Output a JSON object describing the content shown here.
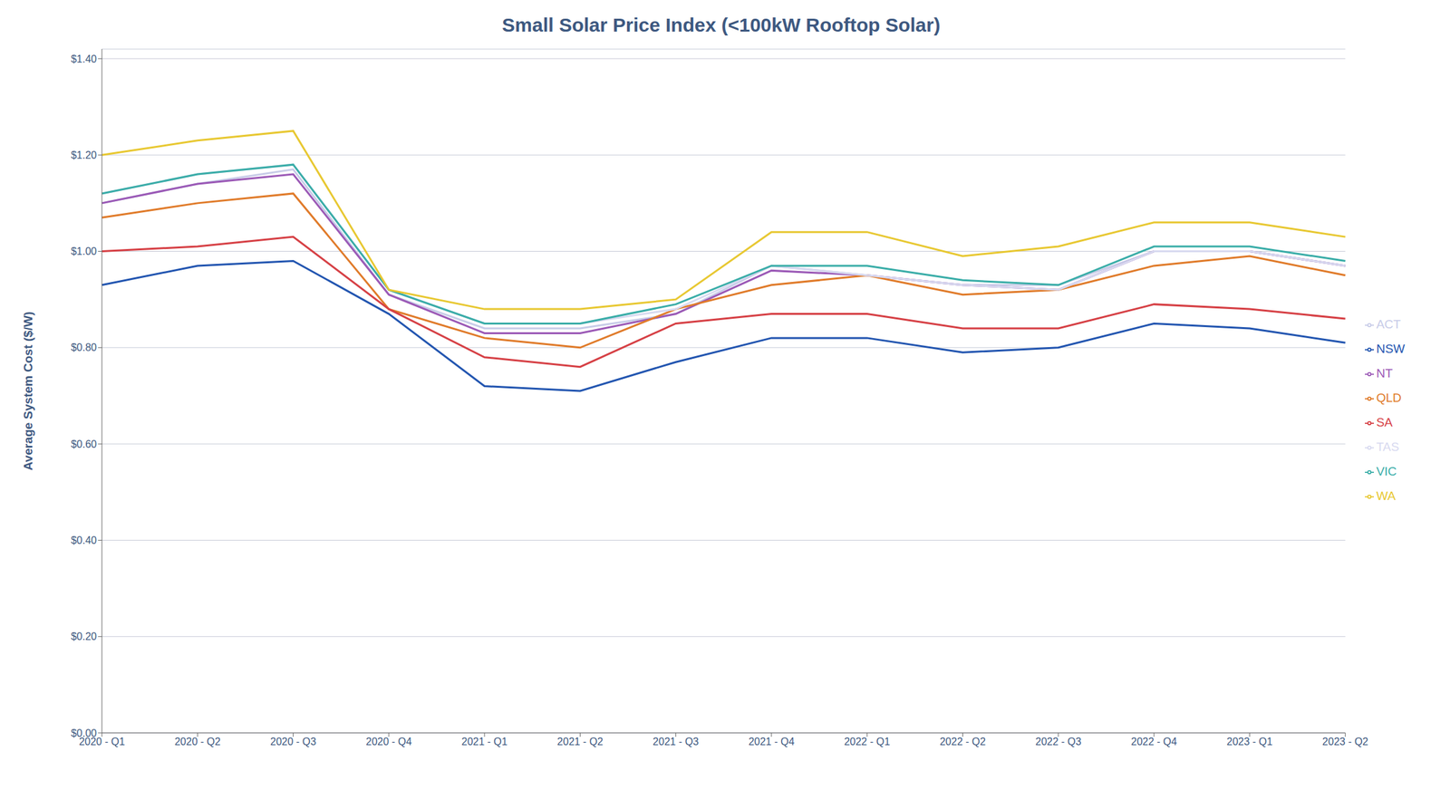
{
  "chart_data": {
    "type": "line",
    "title": "Small Solar Price Index (<100kW Rooftop Solar)",
    "ylabel": "Average System Cost ($/W)",
    "categories": [
      "2020 - Q1",
      "2020 - Q2",
      "2020 - Q3",
      "2020 - Q4",
      "2021 - Q1",
      "2021 - Q2",
      "2021 - Q3",
      "2021 - Q4",
      "2022 - Q1",
      "2022 - Q2",
      "2022 - Q3",
      "2022 - Q4",
      "2023 - Q1",
      "2023 - Q2"
    ],
    "series": [
      {
        "name": "ACT",
        "color": "#c8cce8",
        "values": [
          1.1,
          1.14,
          1.17,
          0.91,
          0.84,
          0.84,
          0.87,
          0.97,
          0.95,
          0.93,
          0.93,
          1.0,
          1.0,
          0.97
        ]
      },
      {
        "name": "NSW",
        "color": "#2255b0",
        "values": [
          0.93,
          0.97,
          0.98,
          0.87,
          0.72,
          0.71,
          0.77,
          0.82,
          0.82,
          0.79,
          0.8,
          0.85,
          0.84,
          0.81
        ]
      },
      {
        "name": "NT",
        "color": "#9b59b6",
        "values": [
          1.1,
          1.14,
          1.16,
          0.91,
          0.83,
          0.83,
          0.87,
          0.96,
          0.95,
          0.93,
          0.92,
          1.0,
          1.0,
          0.97
        ]
      },
      {
        "name": "QLD",
        "color": "#e07b2a",
        "values": [
          1.07,
          1.1,
          1.12,
          0.88,
          0.82,
          0.8,
          0.88,
          0.93,
          0.95,
          0.91,
          0.92,
          0.97,
          0.99,
          0.95
        ]
      },
      {
        "name": "SA",
        "color": "#d64045",
        "values": [
          1.0,
          1.01,
          1.03,
          0.88,
          0.78,
          0.76,
          0.85,
          0.87,
          0.87,
          0.84,
          0.84,
          0.89,
          0.88,
          0.86
        ]
      },
      {
        "name": "TAS",
        "color": "#d8daf0",
        "values": [
          1.12,
          1.16,
          1.18,
          0.92,
          0.85,
          0.85,
          0.88,
          0.97,
          0.95,
          0.93,
          0.92,
          1.0,
          1.0,
          0.97
        ]
      },
      {
        "name": "VIC",
        "color": "#3aada8",
        "values": [
          1.12,
          1.16,
          1.18,
          0.92,
          0.85,
          0.85,
          0.89,
          0.97,
          0.97,
          0.94,
          0.93,
          1.01,
          1.01,
          0.98
        ]
      },
      {
        "name": "WA",
        "color": "#e8c832",
        "values": [
          1.2,
          1.23,
          1.25,
          0.92,
          0.88,
          0.88,
          0.9,
          1.04,
          1.04,
          0.99,
          1.01,
          1.06,
          1.06,
          1.03
        ]
      }
    ],
    "ylim": [
      0.0,
      1.42
    ],
    "yticks": [
      {
        "value": 0.0,
        "label": "$0.00"
      },
      {
        "value": 0.2,
        "label": "$0.20"
      },
      {
        "value": 0.4,
        "label": "$0.40"
      },
      {
        "value": 0.6,
        "label": "$0.60"
      },
      {
        "value": 0.8,
        "label": "$0.80"
      },
      {
        "value": 1.0,
        "label": "$1.00"
      },
      {
        "value": 1.2,
        "label": "$1.20"
      },
      {
        "value": 1.4,
        "label": "$1.40"
      }
    ],
    "grid": true,
    "legend": "right"
  }
}
